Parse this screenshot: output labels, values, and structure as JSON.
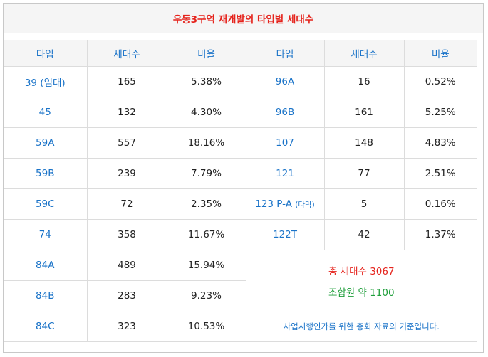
{
  "title": "우동3구역 재개발의 타입별 세대수",
  "headers": [
    "타입",
    "세대수",
    "비율",
    "타입",
    "세대수",
    "비율"
  ],
  "left_rows": [
    {
      "type": "39 (임대)",
      "count": "165",
      "ratio": "5.38%"
    },
    {
      "type": "45",
      "count": "132",
      "ratio": "4.30%"
    },
    {
      "type": "59A",
      "count": "557",
      "ratio": "18.16%"
    },
    {
      "type": "59B",
      "count": "239",
      "ratio": "7.79%"
    },
    {
      "type": "59C",
      "count": "72",
      "ratio": "2.35%"
    },
    {
      "type": "74",
      "count": "358",
      "ratio": "11.67%"
    },
    {
      "type": "84A",
      "count": "489",
      "ratio": "15.94%"
    },
    {
      "type": "84B",
      "count": "283",
      "ratio": "9.23%"
    },
    {
      "type": "84C",
      "count": "323",
      "ratio": "10.53%"
    }
  ],
  "right_rows": [
    {
      "type": "96A",
      "type_suffix": "",
      "count": "16",
      "ratio": "0.52%"
    },
    {
      "type": "96B",
      "type_suffix": "",
      "count": "161",
      "ratio": "5.25%"
    },
    {
      "type": "107",
      "type_suffix": "",
      "count": "148",
      "ratio": "4.83%"
    },
    {
      "type": "121",
      "type_suffix": "",
      "count": "77",
      "ratio": "2.51%"
    },
    {
      "type": "123 P-A",
      "type_suffix": "(다락)",
      "count": "5",
      "ratio": "0.16%"
    },
    {
      "type": "122T",
      "type_suffix": "",
      "count": "42",
      "ratio": "1.37%"
    }
  ],
  "summary": {
    "total_label": "총 세대수 3067",
    "members_label": "조합원 약 1100"
  },
  "footnote": "사업시행인가를 위한 총회 자료의 기준입니다.",
  "colors": {
    "title": "#e5231c",
    "type_text": "#1a73c8",
    "total": "#e5231c",
    "members": "#1e9e3a"
  }
}
